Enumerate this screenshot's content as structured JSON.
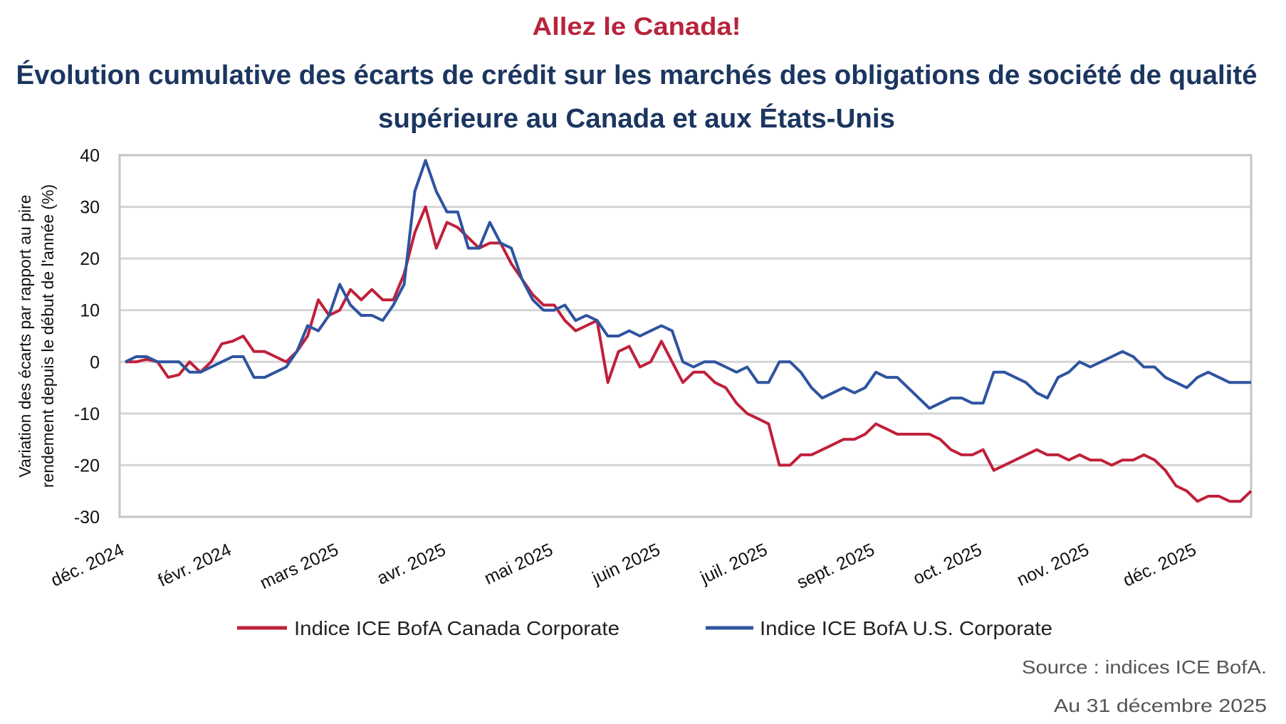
{
  "header": {
    "subtitle": "Allez le Canada!",
    "title_line1": "Évolution cumulative des écarts de crédit sur les marchés des obligations de société de qualité",
    "title_line2": "supérieure au Canada et aux États-Unis"
  },
  "chart_data": {
    "type": "line",
    "title": "Évolution cumulative des écarts de crédit sur les marchés des obligations de société de qualité supérieure au Canada et aux États-Unis",
    "ylabel_line1": "Variation des écarts par rapport au pire",
    "ylabel_line2": "rendement depuis le début de l'année (%)",
    "ylim": [
      -30,
      40
    ],
    "yticks": [
      40,
      30,
      20,
      10,
      0,
      -10,
      -20,
      -30
    ],
    "xtick_labels": [
      "déc. 2024",
      "févr. 2024",
      "mars 2025",
      "avr. 2025",
      "mai 2025",
      "juin 2025",
      "juil. 2025",
      "sept. 2025",
      "oct. 2025",
      "nov. 2025",
      "déc. 2025"
    ],
    "grid": "horizontal",
    "legend_placement": "bottom",
    "series": [
      {
        "name": "Indice ICE BofA Canada Corporate",
        "color": "#c0203a",
        "values": [
          0,
          0,
          0.5,
          0,
          -3,
          -2.5,
          0,
          -2,
          0,
          3.5,
          4,
          5,
          2,
          2,
          1,
          0,
          2,
          5,
          12,
          9,
          10,
          14,
          12,
          14,
          12,
          12,
          17,
          25,
          30,
          22,
          27,
          26,
          24,
          22,
          23,
          23,
          19,
          16,
          13,
          11,
          11,
          8,
          6,
          7,
          8,
          -4,
          2,
          3,
          -1,
          0,
          4,
          0,
          -4,
          -2,
          -2,
          -4,
          -5,
          -8,
          -10,
          -11,
          -12,
          -20,
          -20,
          -18,
          -18,
          -17,
          -16,
          -15,
          -15,
          -14,
          -12,
          -13,
          -14,
          -14,
          -14,
          -14,
          -15,
          -17,
          -18,
          -18,
          -17,
          -21,
          -20,
          -19,
          -18,
          -17,
          -18,
          -18,
          -19,
          -18,
          -19,
          -19,
          -20,
          -19,
          -19,
          -18,
          -19,
          -21,
          -24,
          -25,
          -27,
          -26,
          -26,
          -27,
          -27,
          -25
        ]
      },
      {
        "name": "Indice ICE BofA U.S. Corporate",
        "color": "#2e54a0",
        "values": [
          0,
          1,
          1,
          0,
          0,
          0,
          -2,
          -2,
          -1,
          0,
          1,
          1,
          -3,
          -3,
          -2,
          -1,
          2,
          7,
          6,
          9,
          15,
          11,
          9,
          9,
          8,
          11,
          15,
          33,
          39,
          33,
          29,
          29,
          22,
          22,
          27,
          23,
          22,
          16,
          12,
          10,
          10,
          11,
          8,
          9,
          8,
          5,
          5,
          6,
          5,
          6,
          7,
          6,
          0,
          -1,
          0,
          0,
          -1,
          -2,
          -1,
          -4,
          -4,
          0,
          0,
          -2,
          -5,
          -7,
          -6,
          -5,
          -6,
          -5,
          -2,
          -3,
          -3,
          -5,
          -7,
          -9,
          -8,
          -7,
          -7,
          -8,
          -8,
          -2,
          -2,
          -3,
          -4,
          -6,
          -7,
          -3,
          -2,
          0,
          -1,
          0,
          1,
          2,
          1,
          -1,
          -1,
          -3,
          -4,
          -5,
          -3,
          -2,
          -3,
          -4,
          -4,
          -4
        ]
      }
    ]
  },
  "footer": {
    "source": "Source : indices ICE BofA.",
    "date": "Au 31 décembre 2025"
  }
}
